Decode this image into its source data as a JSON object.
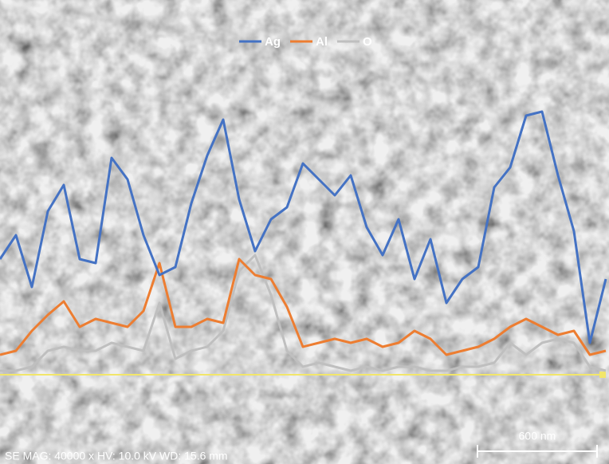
{
  "chart_data": {
    "type": "line",
    "legend": "top",
    "info": "SE  MAG: 40000 x  HV: 10.0 kV  WD: 15.6 mm",
    "scale_bar": "600 nm",
    "x": [
      0,
      20,
      40,
      60,
      80,
      100,
      120,
      140,
      160,
      180,
      200,
      220,
      240,
      260,
      280,
      300,
      320,
      340,
      360,
      380,
      400,
      420,
      440,
      460,
      480,
      500,
      520,
      540,
      560,
      580,
      600,
      620,
      640,
      660,
      680,
      700,
      720,
      740,
      760
    ],
    "xlim": [
      0,
      764
    ],
    "ylim": [
      0,
      400
    ],
    "series": [
      {
        "name": "Ag",
        "color": "#4472c4",
        "values": [
          145,
          175,
          110,
          205,
          238,
          145,
          140,
          272,
          245,
          175,
          125,
          135,
          215,
          275,
          320,
          220,
          155,
          195,
          210,
          265,
          245,
          225,
          250,
          185,
          150,
          195,
          120,
          170,
          90,
          120,
          135,
          235,
          260,
          325,
          330,
          250,
          180,
          40,
          120
        ]
      },
      {
        "name": "Al",
        "color": "#ed7d31",
        "values": [
          25,
          30,
          55,
          75,
          92,
          60,
          70,
          65,
          60,
          80,
          140,
          60,
          60,
          70,
          65,
          145,
          125,
          120,
          85,
          35,
          40,
          45,
          40,
          45,
          35,
          40,
          55,
          45,
          25,
          30,
          35,
          45,
          60,
          70,
          60,
          50,
          55,
          25,
          30
        ]
      },
      {
        "name": "O",
        "color": "#bfbfbf",
        "values": [
          5,
          5,
          10,
          30,
          35,
          30,
          30,
          40,
          35,
          30,
          90,
          20,
          30,
          35,
          55,
          130,
          150,
          100,
          30,
          10,
          15,
          10,
          5,
          10,
          5,
          10,
          10,
          5,
          5,
          10,
          10,
          15,
          40,
          25,
          40,
          45,
          40,
          10,
          5
        ]
      }
    ]
  }
}
